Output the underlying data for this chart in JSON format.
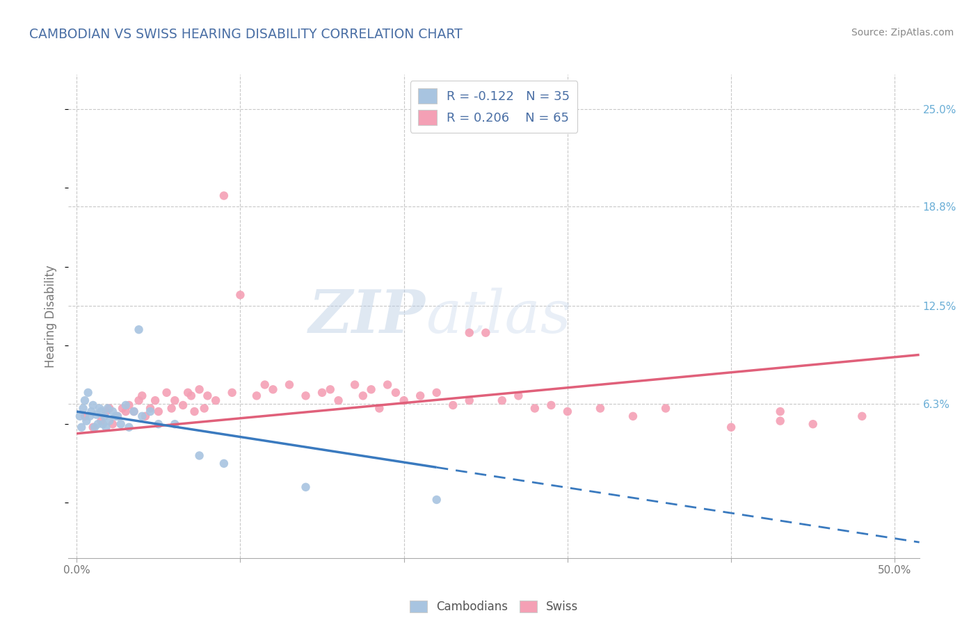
{
  "title": "CAMBODIAN VS SWISS HEARING DISABILITY CORRELATION CHART",
  "source_text": "Source: ZipAtlas.com",
  "ylabel": "Hearing Disability",
  "xlim": [
    -0.005,
    0.515
  ],
  "ylim": [
    -0.035,
    0.272
  ],
  "plot_ylim": [
    0.0,
    0.272
  ],
  "x_ticks": [
    0.0,
    0.1,
    0.2,
    0.3,
    0.4,
    0.5
  ],
  "x_tick_labels": [
    "0.0%",
    "",
    "",
    "",
    "",
    "50.0%"
  ],
  "y_tick_labels_right": [
    "25.0%",
    "18.8%",
    "12.5%",
    "6.3%"
  ],
  "y_tick_values_right": [
    0.25,
    0.188,
    0.125,
    0.063
  ],
  "cambodian_color": "#a8c4e0",
  "cambodian_edge_color": "#6aaed6",
  "swiss_color": "#f4a0b5",
  "swiss_edge_color": "#e07090",
  "trend_cambodian_color": "#3a7abf",
  "trend_swiss_color": "#e0607a",
  "background_color": "#ffffff",
  "grid_color": "#c8c8c8",
  "title_color": "#4a6fa5",
  "watermark_color": "#dce4f0",
  "right_label_color": "#6aaed6",
  "axis_label_color": "#777777",
  "cambodian_scatter_x": [
    0.002,
    0.003,
    0.004,
    0.005,
    0.006,
    0.007,
    0.008,
    0.009,
    0.01,
    0.011,
    0.012,
    0.013,
    0.014,
    0.015,
    0.016,
    0.017,
    0.018,
    0.019,
    0.02,
    0.022,
    0.024,
    0.025,
    0.027,
    0.03,
    0.032,
    0.035,
    0.038,
    0.04,
    0.045,
    0.05,
    0.06,
    0.075,
    0.09,
    0.14,
    0.22
  ],
  "cambodian_scatter_y": [
    0.055,
    0.048,
    0.06,
    0.065,
    0.052,
    0.07,
    0.055,
    0.058,
    0.062,
    0.048,
    0.056,
    0.05,
    0.06,
    0.058,
    0.05,
    0.055,
    0.048,
    0.06,
    0.052,
    0.058,
    0.055,
    0.055,
    0.05,
    0.062,
    0.048,
    0.058,
    0.11,
    0.055,
    0.058,
    0.05,
    0.05,
    0.03,
    0.025,
    0.01,
    0.002
  ],
  "swiss_scatter_x": [
    0.005,
    0.01,
    0.015,
    0.018,
    0.02,
    0.022,
    0.025,
    0.028,
    0.03,
    0.032,
    0.035,
    0.038,
    0.04,
    0.042,
    0.045,
    0.048,
    0.05,
    0.055,
    0.058,
    0.06,
    0.065,
    0.068,
    0.07,
    0.072,
    0.075,
    0.078,
    0.08,
    0.085,
    0.09,
    0.095,
    0.1,
    0.11,
    0.115,
    0.12,
    0.13,
    0.14,
    0.15,
    0.155,
    0.16,
    0.17,
    0.175,
    0.18,
    0.185,
    0.19,
    0.195,
    0.2,
    0.21,
    0.22,
    0.23,
    0.24,
    0.25,
    0.26,
    0.27,
    0.28,
    0.29,
    0.3,
    0.32,
    0.34,
    0.36,
    0.4,
    0.43,
    0.45,
    0.48,
    0.24,
    0.43
  ],
  "swiss_scatter_y": [
    0.055,
    0.048,
    0.052,
    0.058,
    0.06,
    0.05,
    0.055,
    0.06,
    0.058,
    0.062,
    0.058,
    0.065,
    0.068,
    0.055,
    0.06,
    0.065,
    0.058,
    0.07,
    0.06,
    0.065,
    0.062,
    0.07,
    0.068,
    0.058,
    0.072,
    0.06,
    0.068,
    0.065,
    0.195,
    0.07,
    0.132,
    0.068,
    0.075,
    0.072,
    0.075,
    0.068,
    0.07,
    0.072,
    0.065,
    0.075,
    0.068,
    0.072,
    0.06,
    0.075,
    0.07,
    0.065,
    0.068,
    0.07,
    0.062,
    0.065,
    0.108,
    0.065,
    0.068,
    0.06,
    0.062,
    0.058,
    0.06,
    0.055,
    0.06,
    0.048,
    0.058,
    0.05,
    0.055,
    0.108,
    0.052
  ],
  "trend_swiss_x0": 0.0,
  "trend_swiss_y0": 0.044,
  "trend_swiss_x1": 0.515,
  "trend_swiss_y1": 0.094,
  "trend_camb_x0": 0.0,
  "trend_camb_y0": 0.058,
  "trend_camb_x1": 0.515,
  "trend_camb_y1": -0.025,
  "trend_camb_solid_end": 0.22
}
